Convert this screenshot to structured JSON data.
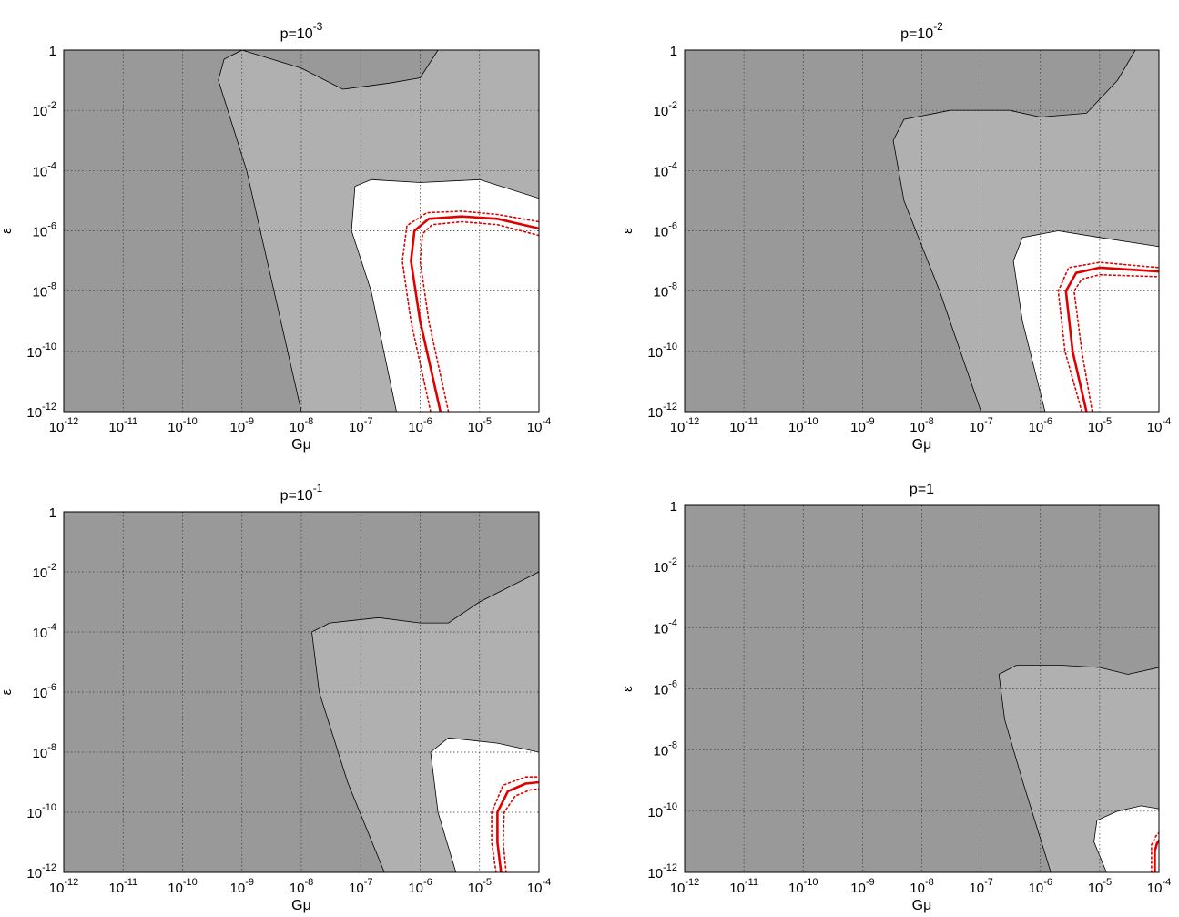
{
  "colors": {
    "excluded_dark": "#999999",
    "excluded_light": "#b0b0b0",
    "allowed": "#ffffff",
    "bound": "#e00000",
    "grid": "#333333"
  },
  "chart_data": [
    {
      "type": "area",
      "title": "p=10",
      "title_exp": "-3",
      "xlabel": "Gμ",
      "ylabel": "ε",
      "xscale": "log",
      "yscale": "log",
      "xlim": [
        1e-12,
        0.0001
      ],
      "ylim": [
        1e-12,
        1
      ],
      "grid": true,
      "x_ticks": [
        {
          "base": "10",
          "exp": "-12"
        },
        {
          "base": "10",
          "exp": "-11"
        },
        {
          "base": "10",
          "exp": "-10"
        },
        {
          "base": "10",
          "exp": "-9"
        },
        {
          "base": "10",
          "exp": "-8"
        },
        {
          "base": "10",
          "exp": "-7"
        },
        {
          "base": "10",
          "exp": "-6"
        },
        {
          "base": "10",
          "exp": "-5"
        },
        {
          "base": "10",
          "exp": "-4"
        }
      ],
      "y_ticks": [
        {
          "base": "10",
          "exp": "-12"
        },
        {
          "base": "10",
          "exp": "-10"
        },
        {
          "base": "10",
          "exp": "-8"
        },
        {
          "base": "10",
          "exp": "-6"
        },
        {
          "base": "10",
          "exp": "-4"
        },
        {
          "base": "10",
          "exp": "-2"
        },
        {
          "base": "1",
          "exp": ""
        }
      ],
      "regions": [
        {
          "fill": "excluded_light",
          "points": [
            {
              "x": 1e-08,
              "y": 1e-12
            },
            {
              "x": 1.2e-09,
              "y": 0.0001
            },
            {
              "x": 4e-10,
              "y": 0.1
            },
            {
              "x": 5e-10,
              "y": 0.5
            },
            {
              "x": 1e-09,
              "y": 1
            },
            {
              "x": 1e-08,
              "y": 0.25
            },
            {
              "x": 5e-08,
              "y": 0.05
            },
            {
              "x": 3e-07,
              "y": 0.08
            },
            {
              "x": 1e-06,
              "y": 0.12
            },
            {
              "x": 2e-06,
              "y": 1
            },
            {
              "x": 0.0001,
              "y": 1
            },
            {
              "x": 0.0001,
              "y": 1e-12
            }
          ]
        },
        {
          "fill": "allowed",
          "points": [
            {
              "x": 4e-07,
              "y": 1e-12
            },
            {
              "x": 1.5e-07,
              "y": 1e-08
            },
            {
              "x": 7e-08,
              "y": 1e-06
            },
            {
              "x": 8e-08,
              "y": 3e-05
            },
            {
              "x": 1.5e-07,
              "y": 5e-05
            },
            {
              "x": 1e-06,
              "y": 4e-05
            },
            {
              "x": 1e-05,
              "y": 5e-05
            },
            {
              "x": 0.0001,
              "y": 1.2e-05
            },
            {
              "x": 0.0001,
              "y": 1e-12
            }
          ]
        }
      ],
      "series": [
        {
          "name": "",
          "style": "solid",
          "points": [
            {
              "x": 2.2e-06,
              "y": 1e-12
            },
            {
              "x": 1e-06,
              "y": 1e-09
            },
            {
              "x": 7e-07,
              "y": 1e-07
            },
            {
              "x": 8e-07,
              "y": 1e-06
            },
            {
              "x": 1.4e-06,
              "y": 2.5e-06
            },
            {
              "x": 5e-06,
              "y": 3e-06
            },
            {
              "x": 2e-05,
              "y": 2.5e-06
            },
            {
              "x": 0.0001,
              "y": 1.2e-06
            }
          ]
        },
        {
          "name": "",
          "style": "dotted",
          "points": [
            {
              "x": 1.5e-06,
              "y": 1e-12
            },
            {
              "x": 7e-07,
              "y": 1e-09
            },
            {
              "x": 5e-07,
              "y": 1e-07
            },
            {
              "x": 6e-07,
              "y": 1.5e-06
            },
            {
              "x": 1.3e-06,
              "y": 4e-06
            },
            {
              "x": 5e-06,
              "y": 4.5e-06
            },
            {
              "x": 2e-05,
              "y": 3.5e-06
            },
            {
              "x": 0.0001,
              "y": 2e-06
            }
          ]
        },
        {
          "name": "",
          "style": "dotted",
          "points": [
            {
              "x": 3e-06,
              "y": 1e-12
            },
            {
              "x": 1.4e-06,
              "y": 1e-09
            },
            {
              "x": 1e-06,
              "y": 1e-07
            },
            {
              "x": 1.1e-06,
              "y": 8e-07
            },
            {
              "x": 1.6e-06,
              "y": 1.6e-06
            },
            {
              "x": 5e-06,
              "y": 2e-06
            },
            {
              "x": 2e-05,
              "y": 1.6e-06
            },
            {
              "x": 0.0001,
              "y": 7e-07
            }
          ]
        }
      ]
    },
    {
      "type": "area",
      "title": "p=10",
      "title_exp": "-2",
      "xlabel": "Gμ",
      "ylabel": "ε",
      "xscale": "log",
      "yscale": "log",
      "xlim": [
        1e-12,
        0.0001
      ],
      "ylim": [
        1e-12,
        1
      ],
      "grid": true,
      "x_ticks": [
        {
          "base": "10",
          "exp": "-12"
        },
        {
          "base": "10",
          "exp": "-11"
        },
        {
          "base": "10",
          "exp": "-10"
        },
        {
          "base": "10",
          "exp": "-9"
        },
        {
          "base": "10",
          "exp": "-8"
        },
        {
          "base": "10",
          "exp": "-7"
        },
        {
          "base": "10",
          "exp": "-6"
        },
        {
          "base": "10",
          "exp": "-5"
        },
        {
          "base": "10",
          "exp": "-4"
        }
      ],
      "y_ticks": [
        {
          "base": "10",
          "exp": "-12"
        },
        {
          "base": "10",
          "exp": "-10"
        },
        {
          "base": "10",
          "exp": "-8"
        },
        {
          "base": "10",
          "exp": "-6"
        },
        {
          "base": "10",
          "exp": "-4"
        },
        {
          "base": "10",
          "exp": "-2"
        },
        {
          "base": "1",
          "exp": ""
        }
      ],
      "regions": [
        {
          "fill": "excluded_light",
          "points": [
            {
              "x": 1e-07,
              "y": 1e-12
            },
            {
              "x": 2e-08,
              "y": 1e-08
            },
            {
              "x": 5e-09,
              "y": 1e-05
            },
            {
              "x": 3.3e-09,
              "y": 0.001
            },
            {
              "x": 5e-09,
              "y": 0.005
            },
            {
              "x": 3e-08,
              "y": 0.01
            },
            {
              "x": 3e-07,
              "y": 0.01
            },
            {
              "x": 1e-06,
              "y": 0.006
            },
            {
              "x": 6e-06,
              "y": 0.008
            },
            {
              "x": 2e-05,
              "y": 0.1
            },
            {
              "x": 4e-05,
              "y": 1
            },
            {
              "x": 0.0001,
              "y": 1
            },
            {
              "x": 0.0001,
              "y": 1e-12
            }
          ]
        },
        {
          "fill": "allowed",
          "points": [
            {
              "x": 1.2e-06,
              "y": 1e-12
            },
            {
              "x": 5e-07,
              "y": 1e-09
            },
            {
              "x": 3.5e-07,
              "y": 1e-07
            },
            {
              "x": 5e-07,
              "y": 6e-07
            },
            {
              "x": 2e-06,
              "y": 1e-06
            },
            {
              "x": 1e-05,
              "y": 6e-07
            },
            {
              "x": 0.0001,
              "y": 3e-07
            },
            {
              "x": 0.0001,
              "y": 1e-12
            }
          ]
        }
      ],
      "series": [
        {
          "name": "",
          "style": "solid",
          "points": [
            {
              "x": 6e-06,
              "y": 1e-12
            },
            {
              "x": 3.5e-06,
              "y": 1e-10
            },
            {
              "x": 2.7e-06,
              "y": 1e-08
            },
            {
              "x": 4e-06,
              "y": 4e-08
            },
            {
              "x": 1e-05,
              "y": 6e-08
            },
            {
              "x": 0.0001,
              "y": 4.5e-08
            }
          ]
        },
        {
          "name": "",
          "style": "dotted",
          "points": [
            {
              "x": 5e-06,
              "y": 1e-12
            },
            {
              "x": 2.6e-06,
              "y": 1e-10
            },
            {
              "x": 2e-06,
              "y": 1e-08
            },
            {
              "x": 3e-06,
              "y": 6e-08
            },
            {
              "x": 1e-05,
              "y": 9e-08
            },
            {
              "x": 0.0001,
              "y": 6e-08
            }
          ]
        },
        {
          "name": "",
          "style": "dotted",
          "points": [
            {
              "x": 7.5e-06,
              "y": 1e-12
            },
            {
              "x": 5e-06,
              "y": 1e-10
            },
            {
              "x": 3.7e-06,
              "y": 1e-08
            },
            {
              "x": 5e-06,
              "y": 2.5e-08
            },
            {
              "x": 1e-05,
              "y": 3.5e-08
            },
            {
              "x": 0.0001,
              "y": 3e-08
            }
          ]
        }
      ]
    },
    {
      "type": "area",
      "title": "p=10",
      "title_exp": "-1",
      "xlabel": "Gμ",
      "ylabel": "ε",
      "xscale": "log",
      "yscale": "log",
      "xlim": [
        1e-12,
        0.0001
      ],
      "ylim": [
        1e-12,
        1
      ],
      "grid": true,
      "x_ticks": [
        {
          "base": "10",
          "exp": "-12"
        },
        {
          "base": "10",
          "exp": "-11"
        },
        {
          "base": "10",
          "exp": "-10"
        },
        {
          "base": "10",
          "exp": "-9"
        },
        {
          "base": "10",
          "exp": "-8"
        },
        {
          "base": "10",
          "exp": "-7"
        },
        {
          "base": "10",
          "exp": "-6"
        },
        {
          "base": "10",
          "exp": "-5"
        },
        {
          "base": "10",
          "exp": "-4"
        }
      ],
      "y_ticks": [
        {
          "base": "10",
          "exp": "-12"
        },
        {
          "base": "10",
          "exp": "-10"
        },
        {
          "base": "10",
          "exp": "-8"
        },
        {
          "base": "10",
          "exp": "-6"
        },
        {
          "base": "10",
          "exp": "-4"
        },
        {
          "base": "10",
          "exp": "-2"
        },
        {
          "base": "1",
          "exp": ""
        }
      ],
      "regions": [
        {
          "fill": "excluded_light",
          "points": [
            {
              "x": 2.5e-07,
              "y": 1e-12
            },
            {
              "x": 6e-08,
              "y": 1e-09
            },
            {
              "x": 2e-08,
              "y": 1e-06
            },
            {
              "x": 1.5e-08,
              "y": 0.0001
            },
            {
              "x": 3e-08,
              "y": 0.0002
            },
            {
              "x": 2e-07,
              "y": 0.0003
            },
            {
              "x": 1e-06,
              "y": 0.0002
            },
            {
              "x": 3e-06,
              "y": 0.0002
            },
            {
              "x": 1e-05,
              "y": 0.001
            },
            {
              "x": 0.0001,
              "y": 0.01
            },
            {
              "x": 0.0001,
              "y": 1e-12
            }
          ]
        },
        {
          "fill": "allowed",
          "points": [
            {
              "x": 4e-06,
              "y": 1e-12
            },
            {
              "x": 2e-06,
              "y": 1e-10
            },
            {
              "x": 1.5e-06,
              "y": 1e-08
            },
            {
              "x": 3e-06,
              "y": 3e-08
            },
            {
              "x": 2e-05,
              "y": 2e-08
            },
            {
              "x": 0.0001,
              "y": 1e-08
            },
            {
              "x": 0.0001,
              "y": 1e-12
            }
          ]
        }
      ],
      "series": [
        {
          "name": "",
          "style": "solid",
          "points": [
            {
              "x": 2.3e-05,
              "y": 1e-12
            },
            {
              "x": 2e-05,
              "y": 1e-11
            },
            {
              "x": 2e-05,
              "y": 1e-10
            },
            {
              "x": 3e-05,
              "y": 5e-10
            },
            {
              "x": 6e-05,
              "y": 9e-10
            },
            {
              "x": 0.0001,
              "y": 1e-09
            }
          ]
        },
        {
          "name": "",
          "style": "dotted",
          "points": [
            {
              "x": 1.9e-05,
              "y": 1e-12
            },
            {
              "x": 1.6e-05,
              "y": 1e-11
            },
            {
              "x": 1.6e-05,
              "y": 1e-10
            },
            {
              "x": 2.5e-05,
              "y": 8e-10
            },
            {
              "x": 6e-05,
              "y": 1.5e-09
            },
            {
              "x": 0.0001,
              "y": 1.5e-09
            }
          ]
        },
        {
          "name": "",
          "style": "dotted",
          "points": [
            {
              "x": 2.8e-05,
              "y": 1e-12
            },
            {
              "x": 2.5e-05,
              "y": 1e-11
            },
            {
              "x": 2.6e-05,
              "y": 1e-10
            },
            {
              "x": 4e-05,
              "y": 3.5e-10
            },
            {
              "x": 7e-05,
              "y": 5.5e-10
            },
            {
              "x": 0.0001,
              "y": 6e-10
            }
          ]
        }
      ]
    },
    {
      "type": "area",
      "title": "p=1",
      "title_exp": "",
      "xlabel": "Gμ",
      "ylabel": "ε",
      "xscale": "log",
      "yscale": "log",
      "xlim": [
        1e-12,
        0.0001
      ],
      "ylim": [
        1e-12,
        1
      ],
      "grid": true,
      "x_ticks": [
        {
          "base": "10",
          "exp": "-12"
        },
        {
          "base": "10",
          "exp": "-11"
        },
        {
          "base": "10",
          "exp": "-10"
        },
        {
          "base": "10",
          "exp": "-9"
        },
        {
          "base": "10",
          "exp": "-8"
        },
        {
          "base": "10",
          "exp": "-7"
        },
        {
          "base": "10",
          "exp": "-6"
        },
        {
          "base": "10",
          "exp": "-5"
        },
        {
          "base": "10",
          "exp": "-4"
        }
      ],
      "y_ticks": [
        {
          "base": "10",
          "exp": "-12"
        },
        {
          "base": "10",
          "exp": "-10"
        },
        {
          "base": "10",
          "exp": "-8"
        },
        {
          "base": "10",
          "exp": "-6"
        },
        {
          "base": "10",
          "exp": "-4"
        },
        {
          "base": "10",
          "exp": "-2"
        },
        {
          "base": "1",
          "exp": ""
        }
      ],
      "regions": [
        {
          "fill": "excluded_light",
          "points": [
            {
              "x": 1.5e-06,
              "y": 1e-12
            },
            {
              "x": 5e-07,
              "y": 1e-09
            },
            {
              "x": 2.5e-07,
              "y": 1e-07
            },
            {
              "x": 2e-07,
              "y": 3e-06
            },
            {
              "x": 4e-07,
              "y": 6e-06
            },
            {
              "x": 2e-06,
              "y": 6e-06
            },
            {
              "x": 1e-05,
              "y": 5e-06
            },
            {
              "x": 3e-05,
              "y": 3e-06
            },
            {
              "x": 0.0001,
              "y": 5e-06
            },
            {
              "x": 0.0001,
              "y": 1e-12
            }
          ]
        },
        {
          "fill": "allowed",
          "points": [
            {
              "x": 1.3e-05,
              "y": 1e-12
            },
            {
              "x": 8e-06,
              "y": 1e-11
            },
            {
              "x": 9e-06,
              "y": 5e-11
            },
            {
              "x": 2e-05,
              "y": 1e-10
            },
            {
              "x": 5e-05,
              "y": 1.5e-10
            },
            {
              "x": 0.0001,
              "y": 1.2e-10
            },
            {
              "x": 0.0001,
              "y": 1e-12
            }
          ]
        }
      ],
      "series": [
        {
          "name": "",
          "style": "solid",
          "points": [
            {
              "x": 8.5e-05,
              "y": 1e-12
            },
            {
              "x": 8.5e-05,
              "y": 5e-12
            },
            {
              "x": 9.3e-05,
              "y": 9e-12
            },
            {
              "x": 0.0001,
              "y": 1.1e-11
            }
          ]
        },
        {
          "name": "",
          "style": "dotted",
          "points": [
            {
              "x": 7.5e-05,
              "y": 1e-12
            },
            {
              "x": 7.5e-05,
              "y": 8e-12
            },
            {
              "x": 8.8e-05,
              "y": 1.5e-11
            },
            {
              "x": 0.0001,
              "y": 2e-11
            }
          ]
        }
      ]
    }
  ]
}
